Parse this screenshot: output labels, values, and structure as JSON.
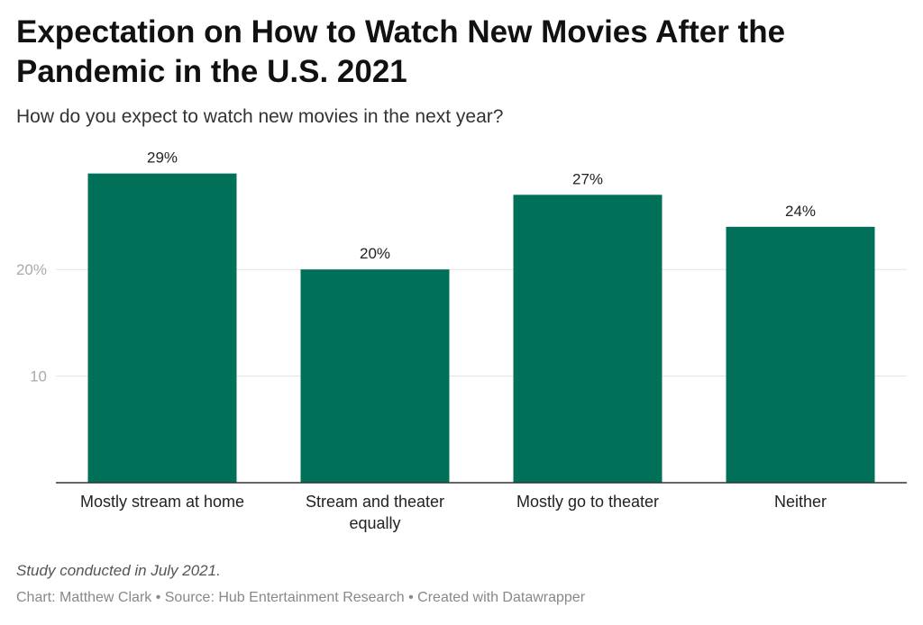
{
  "title": "Expectation on How to Watch New Movies After the Pandemic in the U.S. 2021",
  "subtitle": "How do you expect to watch new movies in the next year?",
  "note": "Study conducted in July 2021.",
  "footer": "Chart: Matthew Clark • Source: Hub Entertainment Research • Created with Datawrapper",
  "chart_data": {
    "type": "bar",
    "categories": [
      [
        "Mostly stream at home"
      ],
      [
        "Stream and theater",
        "equally"
      ],
      [
        "Mostly go to theater"
      ],
      [
        "Neither"
      ]
    ],
    "values": [
      29,
      20,
      27,
      24
    ],
    "value_labels": [
      "29%",
      "20%",
      "27%",
      "24%"
    ],
    "ylim": [
      0,
      30
    ],
    "yticks": [
      {
        "value": 10,
        "label": "10"
      },
      {
        "value": 20,
        "label": "20%"
      }
    ],
    "grid": true,
    "bar_color": "#007058",
    "gridline_color": "#e2e2e2",
    "axis_color": "#333333"
  }
}
